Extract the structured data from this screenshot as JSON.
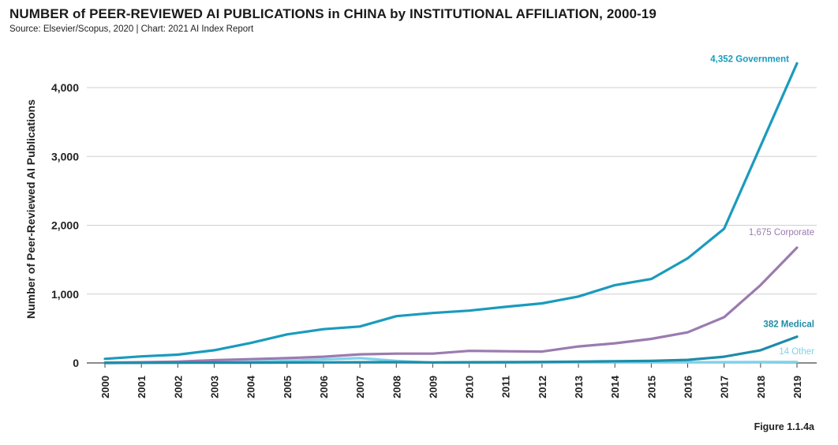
{
  "header": {
    "title": "NUMBER of PEER-REVIEWED AI PUBLICATIONS in CHINA by INSTITUTIONAL AFFILIATION, 2000-19",
    "source": "Source: Elsevier/Scopus, 2020 | Chart: 2021 AI Index Report"
  },
  "footer": {
    "figure_label": "Figure 1.1.4a"
  },
  "chart_data": {
    "type": "line",
    "title": "NUMBER of PEER-REVIEWED AI PUBLICATIONS in CHINA by INSTITUTIONAL AFFILIATION, 2000-19",
    "ylabel": "Number of Peer-Reviewed AI Publications",
    "xlabel": "",
    "ylim": [
      0,
      4500
    ],
    "yticks": [
      0,
      1000,
      2000,
      3000,
      4000
    ],
    "ytick_labels": [
      "0",
      "1,000",
      "2,000",
      "3,000",
      "4,000"
    ],
    "grid": "horizontal",
    "x": [
      "2000",
      "2001",
      "2002",
      "2003",
      "2004",
      "2005",
      "2006",
      "2007",
      "2008",
      "2009",
      "2010",
      "2011",
      "2012",
      "2013",
      "2014",
      "2015",
      "2016",
      "2017",
      "2018",
      "2019"
    ],
    "series": [
      {
        "name": "Government",
        "end_label": "4,352 Government",
        "color": "#1a9bbd",
        "values": [
          60,
          95,
          120,
          185,
          290,
          415,
          490,
          530,
          680,
          725,
          760,
          815,
          865,
          965,
          1130,
          1220,
          1520,
          1950,
          3150,
          4352
        ]
      },
      {
        "name": "Corporate",
        "end_label": "1,675 Corporate",
        "color": "#9b7bb0",
        "values": [
          5,
          10,
          20,
          40,
          55,
          70,
          90,
          125,
          135,
          135,
          175,
          170,
          165,
          240,
          285,
          350,
          445,
          665,
          1130,
          1675
        ]
      },
      {
        "name": "Medical",
        "end_label": "382 Medical",
        "color": "#1e8ca8",
        "values": [
          0,
          2,
          3,
          5,
          5,
          6,
          8,
          10,
          12,
          8,
          10,
          12,
          15,
          20,
          25,
          30,
          45,
          90,
          185,
          382
        ]
      },
      {
        "name": "Other",
        "end_label": "14 Other",
        "color": "#7fd2ea",
        "values": [
          0,
          2,
          5,
          10,
          20,
          30,
          50,
          70,
          30,
          5,
          5,
          5,
          5,
          8,
          10,
          10,
          10,
          12,
          13,
          14
        ]
      }
    ]
  }
}
